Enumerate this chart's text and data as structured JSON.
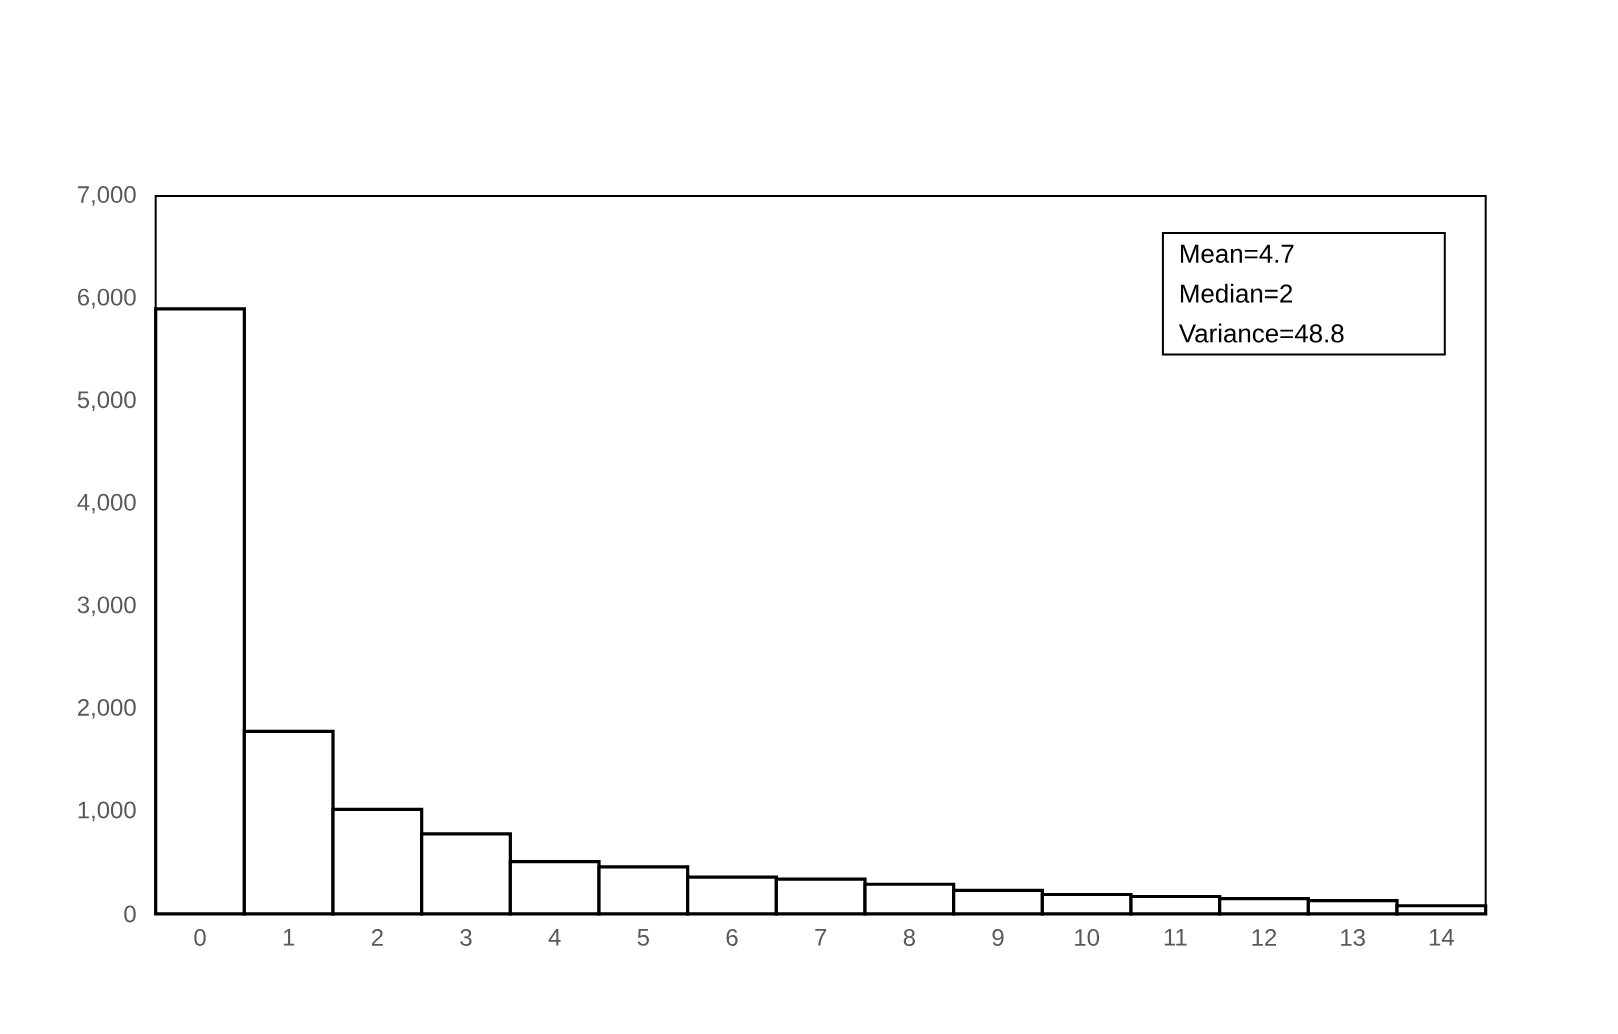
{
  "chart_data": {
    "type": "bar",
    "categories": [
      "0",
      "1",
      "2",
      "3",
      "4",
      "5",
      "6",
      "7",
      "8",
      "9",
      "10",
      "11",
      "12",
      "13",
      "14"
    ],
    "values": [
      5900,
      1780,
      1020,
      780,
      510,
      460,
      360,
      340,
      290,
      230,
      190,
      170,
      150,
      130,
      80
    ],
    "color": "#ffffff",
    "ylim": [
      0,
      7000
    ],
    "yticks": [
      0,
      {
        "value": 1000,
        "label": "1,000"
      },
      {
        "value": 2000,
        "label": "2,000"
      },
      {
        "value": 3000,
        "label": "3,000"
      },
      {
        "value": 4000,
        "label": "4,000"
      },
      {
        "value": 5000,
        "label": "5,000"
      },
      {
        "value": 6000,
        "label": "6,000"
      },
      {
        "value": 7000,
        "label": "7,000"
      }
    ],
    "annotations": [
      "Mean=4.7",
      "Median=2",
      "Variance=48.8"
    ],
    "grid": false
  }
}
